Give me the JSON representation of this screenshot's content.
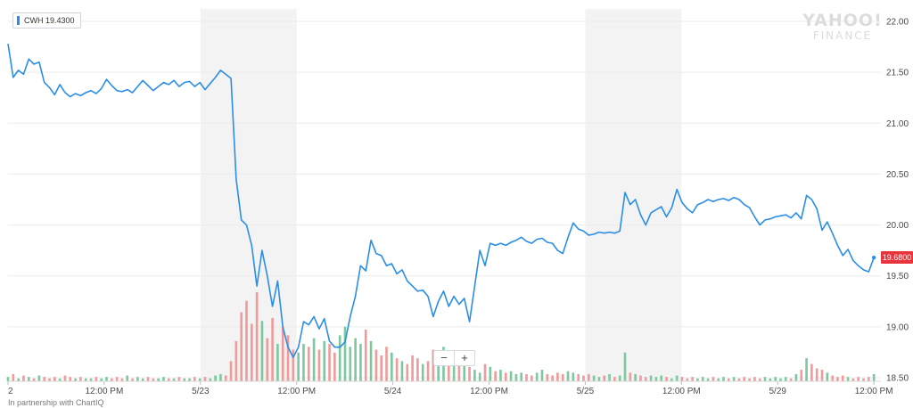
{
  "legend": {
    "symbol": "CWH",
    "value": "19.4300",
    "color": "#2b8ee6"
  },
  "price_tag": {
    "text": "19.6800",
    "color": "#e8343a"
  },
  "watermark": {
    "line1": "YAHOO!",
    "line2": "FINANCE"
  },
  "zoom": {
    "minus": "−",
    "plus": "+"
  },
  "footer": "In partnership with ChartIQ",
  "colors": {
    "line": "#2b8ee6",
    "shade": "#f3f3f3",
    "vol_up": "#7dc8a0",
    "vol_down": "#f09a9a"
  },
  "chart_data": {
    "type": "line",
    "title": "",
    "xlabel": "",
    "ylabel": "",
    "ylim": [
      18.5,
      22.0
    ],
    "yticks": [
      "22.00",
      "21.50",
      "21.00",
      "20.50",
      "20.00",
      "19.50",
      "19.00",
      "18.50"
    ],
    "xticks": [
      "2",
      "12:00 PM",
      "5/23",
      "12:00 PM",
      "5/24",
      "12:00 PM",
      "5/25",
      "12:00 PM",
      "5/29",
      "12:00 PM"
    ],
    "grid": true,
    "series": [
      {
        "values": [
          21.78,
          21.45,
          21.52,
          21.48,
          21.63,
          21.58,
          21.6,
          21.4,
          21.35,
          21.28,
          21.38,
          21.3,
          21.26,
          21.29,
          21.27,
          21.3,
          21.32,
          21.29,
          21.34,
          21.43,
          21.37,
          21.32,
          21.31,
          21.33,
          21.3,
          21.36,
          21.42,
          21.37,
          21.32,
          21.36,
          21.4,
          21.38,
          21.42,
          21.36,
          21.4,
          21.41,
          21.36,
          21.4,
          21.33,
          21.39,
          21.45,
          21.52,
          21.48,
          21.44,
          20.45,
          20.05,
          20.0,
          19.8,
          19.4,
          19.75,
          19.5,
          19.2,
          19.45,
          19.0,
          18.8,
          18.7,
          18.8,
          19.05,
          19.02,
          19.1,
          18.98,
          19.08,
          18.86,
          18.8,
          18.8,
          18.85,
          19.1,
          19.3,
          19.6,
          19.55,
          19.85,
          19.72,
          19.7,
          19.6,
          19.62,
          19.52,
          19.56,
          19.45,
          19.4,
          19.35,
          19.36,
          19.3,
          19.1,
          19.25,
          19.35,
          19.2,
          19.3,
          19.22,
          19.28,
          19.05,
          19.4,
          19.75,
          19.6,
          19.82,
          19.8,
          19.82,
          19.8,
          19.83,
          19.85,
          19.88,
          19.84,
          19.82,
          19.86,
          19.87,
          19.83,
          19.82,
          19.75,
          19.72,
          19.88,
          20.02,
          19.96,
          19.94,
          19.9,
          19.91,
          19.93,
          19.92,
          19.93,
          19.92,
          19.94,
          20.32,
          20.2,
          20.25,
          20.1,
          20.0,
          20.12,
          20.15,
          20.18,
          20.08,
          20.17,
          20.35,
          20.22,
          20.16,
          20.12,
          20.2,
          20.22,
          20.25,
          20.23,
          20.25,
          20.26,
          20.24,
          20.27,
          20.25,
          20.2,
          20.17,
          20.08,
          20.0,
          20.05,
          20.06,
          20.08,
          20.09,
          20.1,
          20.07,
          20.12,
          20.06,
          20.29,
          20.25,
          20.16,
          19.95,
          20.03,
          19.92,
          19.8,
          19.7,
          19.76,
          19.65,
          19.6,
          19.56,
          19.54,
          19.68
        ]
      }
    ],
    "volume": [
      3,
      5,
      2,
      4,
      3,
      2,
      4,
      3,
      2,
      3,
      2,
      4,
      3,
      2,
      3,
      2,
      2,
      3,
      2,
      3,
      2,
      3,
      2,
      4,
      2,
      3,
      2,
      3,
      2,
      2,
      3,
      2,
      2,
      3,
      2,
      2,
      3,
      2,
      3,
      2,
      4,
      5,
      4,
      14,
      28,
      48,
      56,
      40,
      62,
      42,
      30,
      44,
      26,
      38,
      32,
      22,
      20,
      26,
      24,
      30,
      22,
      28,
      26,
      20,
      32,
      38,
      24,
      30,
      26,
      36,
      28,
      22,
      18,
      24,
      20,
      16,
      14,
      12,
      18,
      16,
      12,
      14,
      22,
      18,
      24,
      16,
      12,
      14,
      12,
      10,
      8,
      6,
      12,
      10,
      7,
      8,
      6,
      7,
      5,
      6,
      5,
      4,
      6,
      8,
      5,
      4,
      6,
      5,
      7,
      6,
      5,
      4,
      5,
      4,
      3,
      4,
      5,
      3,
      4,
      20,
      6,
      5,
      4,
      3,
      4,
      3,
      4,
      3,
      2,
      4,
      3,
      2,
      3,
      2,
      3,
      2,
      3,
      2,
      3,
      2,
      3,
      2,
      3,
      2,
      3,
      2,
      3,
      2,
      3,
      2,
      3,
      2,
      5,
      8,
      16,
      12,
      9,
      8,
      6,
      4,
      3,
      4,
      3,
      2,
      3,
      2,
      3,
      5
    ],
    "bands": [
      [
        0.0,
        0.5
      ],
      [
        1.0,
        1.5
      ],
      [
        2.0,
        2.5
      ],
      [
        3.0,
        3.5
      ],
      [
        4.0,
        4.5
      ],
      [
        5.0,
        5.5
      ],
      [
        6.0,
        6.5
      ],
      [
        7.0,
        7.5
      ],
      [
        8.0,
        8.5
      ]
    ]
  }
}
